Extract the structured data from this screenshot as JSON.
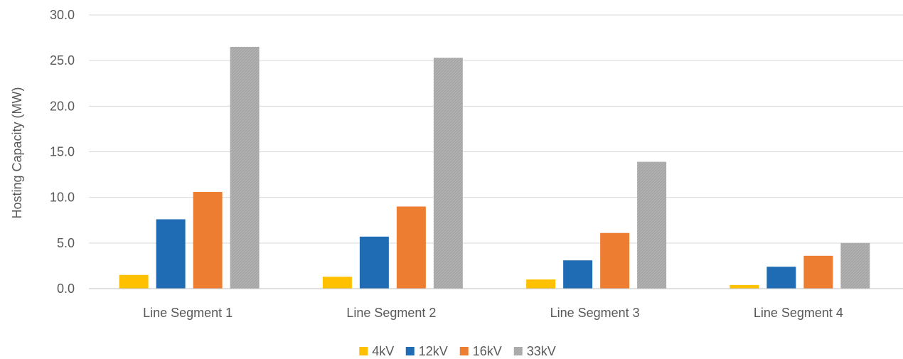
{
  "chart_data": {
    "type": "bar",
    "title": "",
    "xlabel": "",
    "ylabel": "Hosting Capacity (MW)",
    "categories": [
      "Line Segment 1",
      "Line Segment 2",
      "Line Segment 3",
      "Line Segment 4"
    ],
    "series": [
      {
        "name": "4kV",
        "color": "#FFC000",
        "values": [
          1.5,
          1.3,
          1.0,
          0.4
        ]
      },
      {
        "name": "12kV",
        "color": "#1F6CB4",
        "values": [
          7.6,
          5.7,
          3.1,
          2.4
        ]
      },
      {
        "name": "16kV",
        "color": "#ED7D31",
        "values": [
          10.6,
          9.0,
          6.1,
          3.6
        ]
      },
      {
        "name": "33kV",
        "color": "#A5A5A5",
        "values": [
          26.5,
          25.3,
          13.9,
          5.0
        ]
      }
    ],
    "ylim": [
      0,
      30
    ],
    "yticks": [
      "0.0",
      "5.0",
      "10.0",
      "15.0",
      "20.0",
      "25.0",
      "30.0"
    ],
    "grid": true,
    "legend_position": "bottom"
  }
}
